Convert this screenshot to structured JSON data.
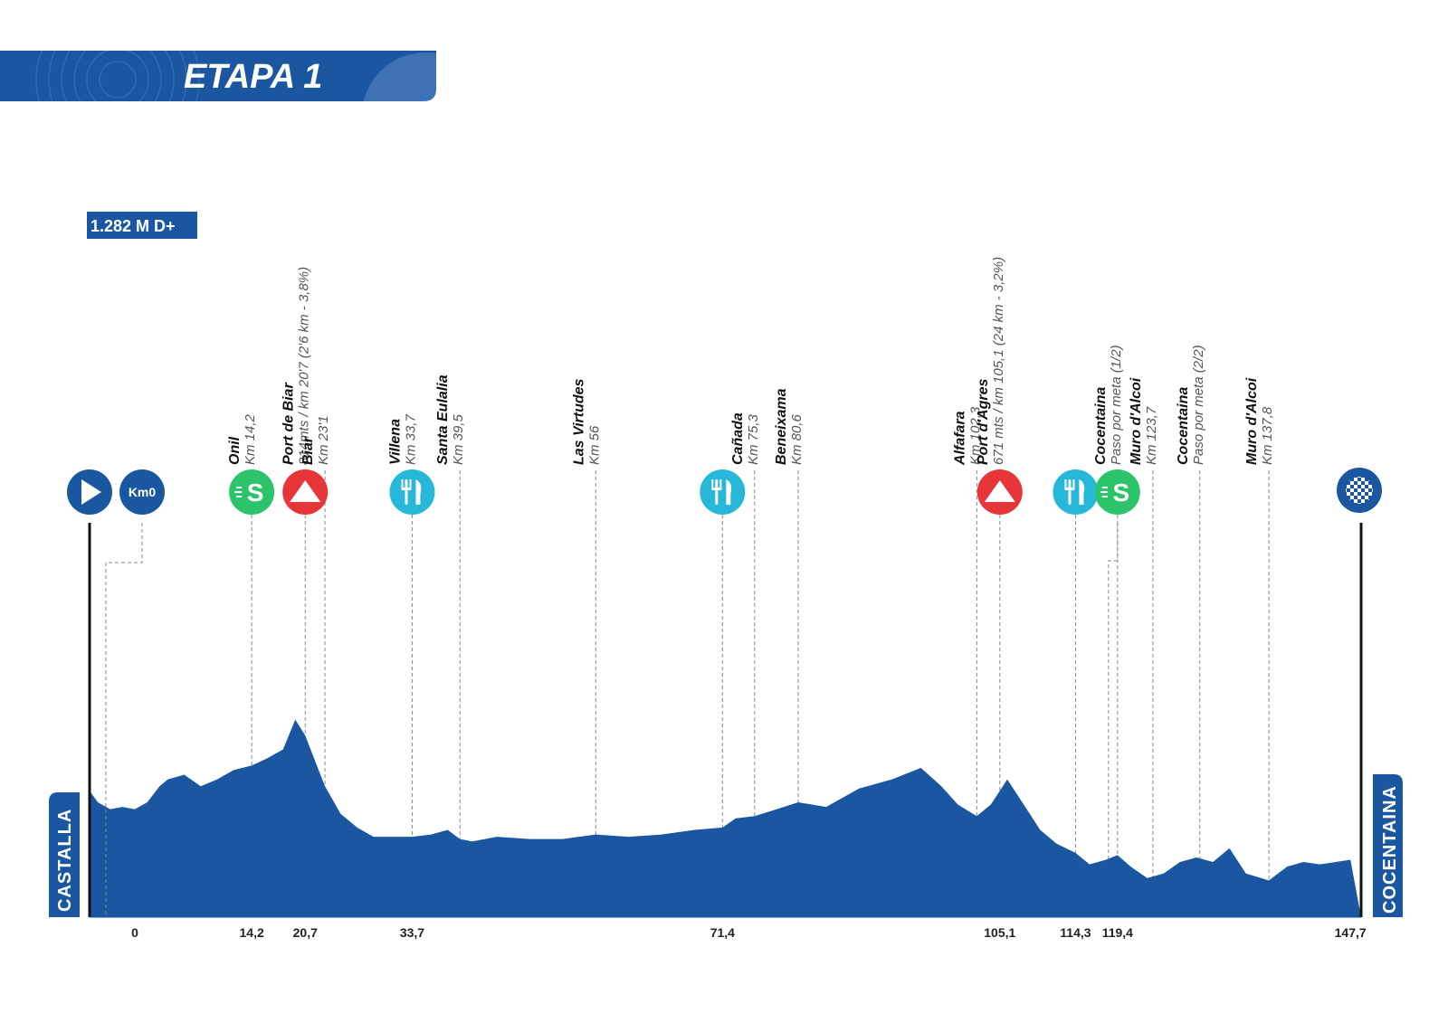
{
  "header": {
    "stage_title": "ETAPA 1"
  },
  "elevation_gain": "1.282 M D+",
  "colors": {
    "profile": "#1b57a0",
    "header": "#1b57a0",
    "sprint": "#2bc46a",
    "climb": "#e8353a",
    "feed": "#27b7d8",
    "marker": "#1b57a0"
  },
  "start_city": "CASTALLA",
  "finish_city": "COCENTAINA",
  "km0_label": "Km0",
  "chart_data": {
    "type": "area",
    "title": "ETAPA 1",
    "xlabel": "",
    "ylabel": "",
    "xlim": [
      -5.5,
      149
    ],
    "distance_km": [
      -5.5,
      -4.5,
      -3,
      -1.5,
      0,
      1.5,
      3,
      4,
      6,
      8,
      10,
      12,
      14.2,
      16,
      18,
      19.5,
      20.7,
      22,
      23.1,
      25,
      27,
      29,
      31,
      33.7,
      36,
      38,
      39.5,
      41,
      44,
      48,
      52,
      56,
      60,
      64,
      68,
      71.4,
      73,
      75.3,
      78,
      80.6,
      84,
      88,
      92,
      95.5,
      98,
      100,
      102.3,
      104,
      105.1,
      106,
      108,
      110,
      112,
      114.3,
      116,
      118,
      119.4,
      121,
      123,
      125,
      127,
      129,
      131,
      133,
      135,
      137.8,
      140,
      142,
      144,
      147.7
    ],
    "profile_altitude_unlabeled": [
      0.55,
      0.5,
      0.47,
      0.48,
      0.47,
      0.5,
      0.57,
      0.6,
      0.62,
      0.57,
      0.6,
      0.64,
      0.66,
      0.69,
      0.73,
      0.86,
      0.79,
      0.67,
      0.57,
      0.45,
      0.39,
      0.35,
      0.35,
      0.35,
      0.36,
      0.38,
      0.34,
      0.33,
      0.35,
      0.34,
      0.34,
      0.36,
      0.35,
      0.36,
      0.38,
      0.39,
      0.43,
      0.44,
      0.47,
      0.5,
      0.48,
      0.56,
      0.6,
      0.65,
      0.57,
      0.49,
      0.44,
      0.49,
      0.55,
      0.6,
      0.49,
      0.38,
      0.32,
      0.28,
      0.23,
      0.25,
      0.27,
      0.22,
      0.17,
      0.19,
      0.24,
      0.26,
      0.24,
      0.3,
      0.19,
      0.16,
      0.22,
      0.24,
      0.23,
      0.25
    ],
    "x_ticks": [
      "0",
      "14,2",
      "20,7",
      "33,7",
      "71,4",
      "105,1",
      "114,3",
      "119,4",
      "147,7"
    ],
    "x_tick_values": [
      0,
      14.2,
      20.7,
      33.7,
      71.4,
      105.1,
      114.3,
      119.4,
      147.7
    ],
    "waypoints": [
      {
        "km": 14.2,
        "name": "Onil",
        "detail": "Km 14,2",
        "icon": "sprint"
      },
      {
        "km": 20.7,
        "name": "Port de Biar",
        "detail": "814mts / km 20'7 (2'6 km - 3,8%)",
        "icon": "climb"
      },
      {
        "km": 23.1,
        "name": "Biar",
        "detail": "Km 23'1",
        "icon": ""
      },
      {
        "km": 33.7,
        "name": "Villena",
        "detail": "Km 33,7",
        "icon": "feed"
      },
      {
        "km": 39.5,
        "name": "Santa Eulalia",
        "detail": "Km 39,5",
        "icon": ""
      },
      {
        "km": 56,
        "name": "Las Virtudes",
        "detail": "Km 56",
        "icon": ""
      },
      {
        "km": 71.4,
        "name": "",
        "detail": "",
        "icon": "feed"
      },
      {
        "km": 75.3,
        "name": "Cañada",
        "detail": "Km 75,3",
        "icon": ""
      },
      {
        "km": 80.6,
        "name": "Beneixama",
        "detail": "Km 80,6",
        "icon": ""
      },
      {
        "km": 102.3,
        "name": "Alfafara",
        "detail": "Km 102,3",
        "icon": ""
      },
      {
        "km": 105.1,
        "name": "Port d'Agres",
        "detail": "671 mts / km 105,1 (24 km - 3,2%)",
        "icon": "climb"
      },
      {
        "km": 114.3,
        "name": "",
        "detail": "",
        "icon": "feed"
      },
      {
        "km": 119.4,
        "name": "Cocentaina",
        "detail": "Paso por meta (1/2)",
        "icon": "sprint"
      },
      {
        "km": 123.7,
        "name": "Muro d'Alcoi",
        "detail": "Km 123,7",
        "icon": ""
      },
      {
        "km": 129.4,
        "name": "Cocentaina",
        "detail": "Paso por meta (2/2)",
        "icon": ""
      },
      {
        "km": 137.8,
        "name": "Muro d'Alcoi",
        "detail": "Km 137,8",
        "icon": ""
      }
    ],
    "grid": false
  }
}
